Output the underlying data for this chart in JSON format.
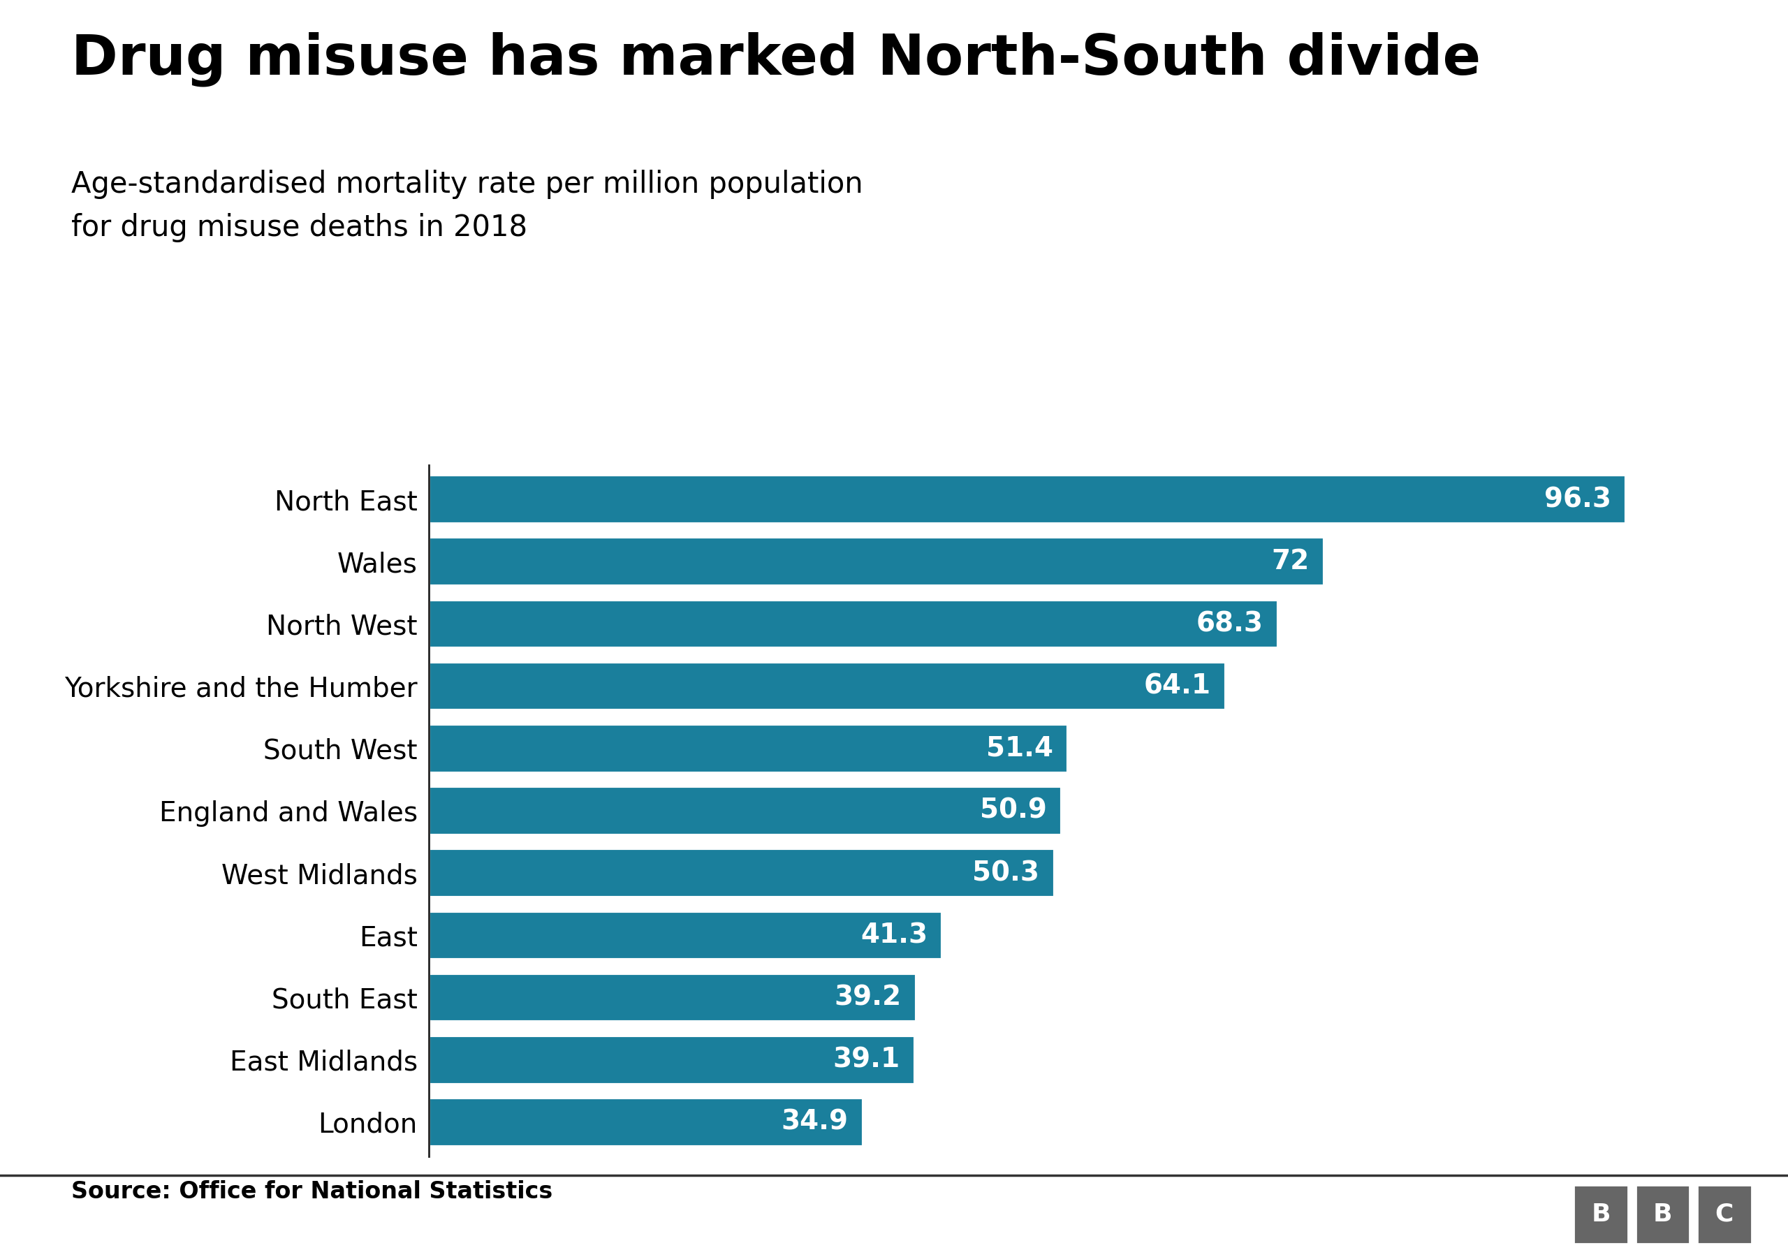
{
  "title": "Drug misuse has marked North-South divide",
  "subtitle": "Age-standardised mortality rate per million population\nfor drug misuse deaths in 2018",
  "source": "Source: Office for National Statistics",
  "categories": [
    "North East",
    "Wales",
    "North West",
    "Yorkshire and the Humber",
    "South West",
    "England and Wales",
    "West Midlands",
    "East",
    "South East",
    "East Midlands",
    "London"
  ],
  "values": [
    96.3,
    72.0,
    68.3,
    64.1,
    51.4,
    50.9,
    50.3,
    41.3,
    39.2,
    39.1,
    34.9
  ],
  "bar_color": "#1a7f9c",
  "label_color": "#ffffff",
  "title_color": "#000000",
  "subtitle_color": "#000000",
  "source_color": "#000000",
  "background_color": "#ffffff",
  "bbc_bg_color": "#666666",
  "xlim": [
    0,
    105
  ],
  "title_fontsize": 58,
  "subtitle_fontsize": 30,
  "label_fontsize": 28,
  "category_fontsize": 28,
  "source_fontsize": 24
}
